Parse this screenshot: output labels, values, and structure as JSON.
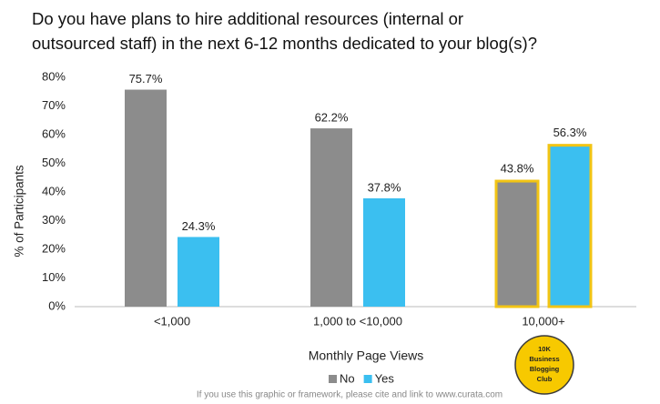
{
  "chart_data": {
    "type": "bar",
    "title": [
      "Do you have plans to hire additional resources (internal or",
      "outsourced staff) in the next 6-12 months dedicated to your blog(s)?"
    ],
    "x_label": "Monthly Page Views",
    "y_label": "% of Participants",
    "categories": [
      "<1,000",
      "1,000 to <10,000",
      "10,000+"
    ],
    "series": [
      {
        "name": "No",
        "color": "#8c8c8c",
        "values": [
          75.7,
          62.2,
          43.8
        ],
        "value_labels": [
          "75.7%",
          "62.2%",
          "43.8%"
        ]
      },
      {
        "name": "Yes",
        "color": "#3bbff0",
        "values": [
          24.3,
          37.8,
          56.3
        ],
        "value_labels": [
          "24.3%",
          "37.8%",
          "56.3%"
        ]
      }
    ],
    "ylim": [
      0,
      80
    ],
    "yticks": [
      {
        "value": 0,
        "label": "0%"
      },
      {
        "value": 10,
        "label": "10%"
      },
      {
        "value": 20,
        "label": "20%"
      },
      {
        "value": 30,
        "label": "30%"
      },
      {
        "value": 40,
        "label": "40%"
      },
      {
        "value": 50,
        "label": "50%"
      },
      {
        "value": 60,
        "label": "60%"
      },
      {
        "value": 70,
        "label": "70%"
      },
      {
        "value": 80,
        "label": "80%"
      }
    ],
    "grid": false,
    "legend": "bottom",
    "highlight_index": 2,
    "highlight_color": "#f2c414",
    "badge": [
      "10K",
      "Business",
      "Blogging",
      "Club"
    ],
    "footnote": "If you use this graphic or framework, please cite and link to www.curata.com"
  }
}
